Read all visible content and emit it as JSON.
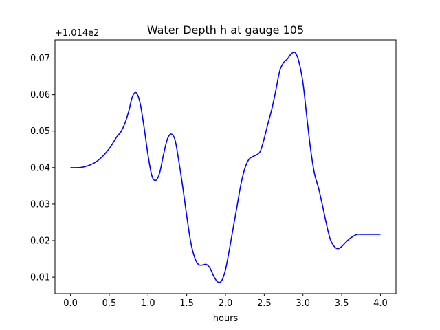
{
  "chart_data": {
    "type": "line",
    "title": "Water Depth h at gauge 105",
    "xlabel": "hours",
    "ylabel": "",
    "y_offset_label": "+1.014e2",
    "xlim": [
      -0.2,
      4.2
    ],
    "ylim": [
      0.0055,
      0.075
    ],
    "xticks": [
      0.0,
      0.5,
      1.0,
      1.5,
      2.0,
      2.5,
      3.0,
      3.5,
      4.0
    ],
    "xtick_labels": [
      "0.0",
      "0.5",
      "1.0",
      "1.5",
      "2.0",
      "2.5",
      "3.0",
      "3.5",
      "4.0"
    ],
    "yticks": [
      0.01,
      0.02,
      0.03,
      0.04,
      0.05,
      0.06,
      0.07
    ],
    "ytick_labels": [
      "0.01",
      "0.02",
      "0.03",
      "0.04",
      "0.05",
      "0.06",
      "0.07"
    ],
    "grid": false,
    "series": [
      {
        "name": "",
        "color": "#0000ff",
        "x": [
          0.0,
          0.15,
          0.3,
          0.4,
          0.5,
          0.55,
          0.6,
          0.65,
          0.7,
          0.75,
          0.8,
          0.85,
          0.9,
          0.95,
          1.0,
          1.05,
          1.1,
          1.15,
          1.2,
          1.25,
          1.3,
          1.35,
          1.4,
          1.45,
          1.5,
          1.55,
          1.6,
          1.65,
          1.7,
          1.75,
          1.8,
          1.85,
          1.9,
          1.95,
          2.0,
          2.05,
          2.1,
          2.15,
          2.2,
          2.25,
          2.3,
          2.35,
          2.4,
          2.45,
          2.5,
          2.55,
          2.6,
          2.65,
          2.7,
          2.75,
          2.8,
          2.85,
          2.9,
          2.95,
          3.0,
          3.05,
          3.1,
          3.15,
          3.2,
          3.25,
          3.3,
          3.35,
          3.4,
          3.45,
          3.5,
          3.55,
          3.6,
          3.65,
          3.7,
          3.75,
          3.8,
          3.85,
          3.9,
          3.95,
          4.0
        ],
        "y": [
          0.04,
          0.0401,
          0.0412,
          0.0428,
          0.0452,
          0.0468,
          0.0485,
          0.0498,
          0.052,
          0.0553,
          0.0595,
          0.0605,
          0.0575,
          0.051,
          0.0435,
          0.0378,
          0.0365,
          0.0385,
          0.0435,
          0.0478,
          0.0492,
          0.0475,
          0.0415,
          0.0345,
          0.0268,
          0.0198,
          0.0155,
          0.0135,
          0.0133,
          0.0135,
          0.0125,
          0.0102,
          0.0087,
          0.009,
          0.012,
          0.0175,
          0.0235,
          0.0295,
          0.0355,
          0.0398,
          0.0422,
          0.043,
          0.0435,
          0.0445,
          0.048,
          0.0522,
          0.0562,
          0.0612,
          0.0665,
          0.0688,
          0.0698,
          0.0712,
          0.0715,
          0.0688,
          0.0632,
          0.0538,
          0.0448,
          0.0382,
          0.0345,
          0.0298,
          0.0248,
          0.0205,
          0.0185,
          0.0178,
          0.0184,
          0.0195,
          0.0205,
          0.0212,
          0.0217,
          0.0217,
          0.0217,
          0.0217,
          0.0217,
          0.0217,
          0.0217
        ]
      }
    ]
  }
}
